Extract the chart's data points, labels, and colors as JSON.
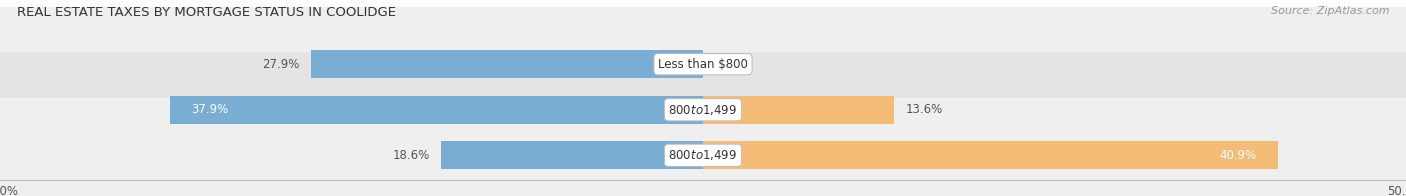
{
  "title": "REAL ESTATE TAXES BY MORTGAGE STATUS IN COOLIDGE",
  "source": "Source: ZipAtlas.com",
  "rows": [
    {
      "label": "Less than $800",
      "without_mortgage": 27.9,
      "with_mortgage": 0.0,
      "wm_label_inside": false,
      "wt_label_inside": false
    },
    {
      "label": "$800 to $1,499",
      "without_mortgage": 37.9,
      "with_mortgage": 13.6,
      "wm_label_inside": true,
      "wt_label_inside": false
    },
    {
      "label": "$800 to $1,499",
      "without_mortgage": 18.6,
      "with_mortgage": 40.9,
      "wm_label_inside": false,
      "wt_label_inside": true
    }
  ],
  "xlim": [
    -50.0,
    50.0
  ],
  "color_without": "#7aadd4",
  "color_with": "#f5bc78",
  "bar_height": 0.62,
  "row_bg_even": "#efefef",
  "row_bg_odd": "#e4e4e4",
  "title_fontsize": 9.5,
  "source_fontsize": 8,
  "label_fontsize": 8.5,
  "tick_fontsize": 8.5,
  "legend_fontsize": 9
}
